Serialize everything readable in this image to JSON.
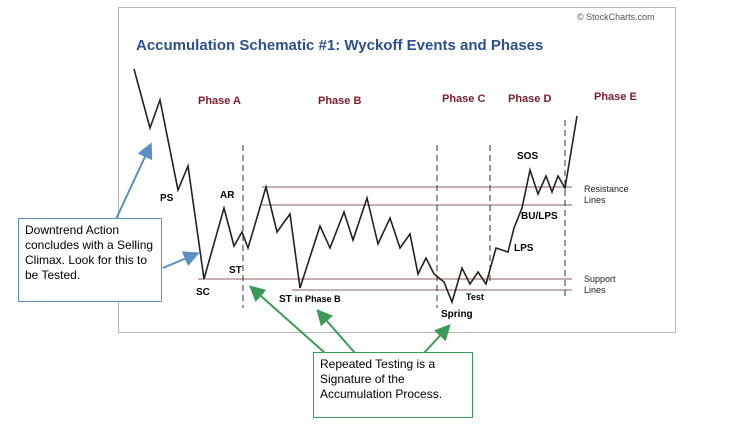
{
  "title": "Accumulation Schematic #1: Wyckoff Events and Phases",
  "credit": "© StockCharts.com",
  "phases": {
    "a": "Phase A",
    "b": "Phase B",
    "c": "Phase C",
    "d": "Phase D",
    "e": "Phase E"
  },
  "events": {
    "ps": "PS",
    "ar": "AR",
    "sc": "SC",
    "st": "ST",
    "st_phase_b_main": "ST",
    "st_phase_b_sub": "in Phase B",
    "spring": "Spring",
    "test": "Test",
    "sos": "SOS",
    "bu_lps": "BU/LPS",
    "lps": "LPS"
  },
  "side_labels": {
    "resistance_1": "Resistance",
    "resistance_2": "Lines",
    "support_1": "Support",
    "support_2": "Lines"
  },
  "callouts": {
    "downtrend": "Downtrend Action concludes with a Selling Climax. Look for this to be Tested.",
    "repeated": "Repeated Testing is a Signature of the Accumulation Process."
  },
  "colors": {
    "title": "#2f4f8f",
    "phase": "#7a1e2e",
    "price_line": "#222222",
    "level_line": "#8a6060",
    "blue_arrow": "#5a8ec4",
    "green_arrow": "#3b9a55"
  }
}
